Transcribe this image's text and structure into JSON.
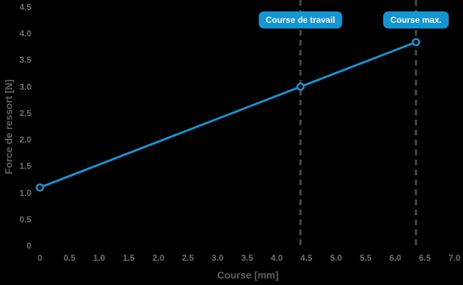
{
  "colors": {
    "background": "#000000",
    "accent_blue": "#1396d4",
    "tick_text": "#6e6e6e",
    "axis_title_text": "#5f5f5f",
    "dash_line": "#4a4a4a",
    "badge_text": "#ffffff"
  },
  "chart_data": {
    "type": "line",
    "title": "",
    "xlabel": "Course [mm]",
    "ylabel": "Force de ressort [N]",
    "xlim": [
      0,
      7
    ],
    "ylim": [
      0,
      4.5
    ],
    "grid": false,
    "legend": "none",
    "x_tick_values": [
      0,
      0.5,
      1,
      1.5,
      2,
      2.5,
      3,
      3.5,
      4,
      4.5,
      5,
      5.5,
      6,
      6.5,
      7
    ],
    "x_tick_labels": [
      "0",
      "0.5",
      "1.0",
      "1.5",
      "2.0",
      "2.5",
      "3.0",
      "3.5",
      "4.0",
      "4.5",
      "5.0",
      "5.5",
      "6.0",
      "6.5",
      "7.0"
    ],
    "y_tick_values": [
      0,
      0.5,
      1,
      1.5,
      2,
      2.5,
      3,
      3.5,
      4,
      4.5
    ],
    "y_tick_labels": [
      "0",
      "0.5",
      "1.0",
      "1.5",
      "2.0",
      "2.5",
      "3.0",
      "3.5",
      "4.0",
      "4.5"
    ],
    "series": [
      {
        "name": "spring-force-line",
        "marker": "open-circle",
        "points": [
          {
            "x": 0,
            "y": 1.1
          },
          {
            "x": 4.4,
            "y": 3.0
          },
          {
            "x": 6.35,
            "y": 3.84
          }
        ]
      }
    ],
    "annotations": [
      {
        "id": "course-de-travail",
        "label": "Course de travail",
        "x": 4.4,
        "style": "dashed-vline-with-badge"
      },
      {
        "id": "course-max",
        "label": "Course max.",
        "x": 6.35,
        "style": "dashed-vline-with-badge"
      }
    ]
  }
}
